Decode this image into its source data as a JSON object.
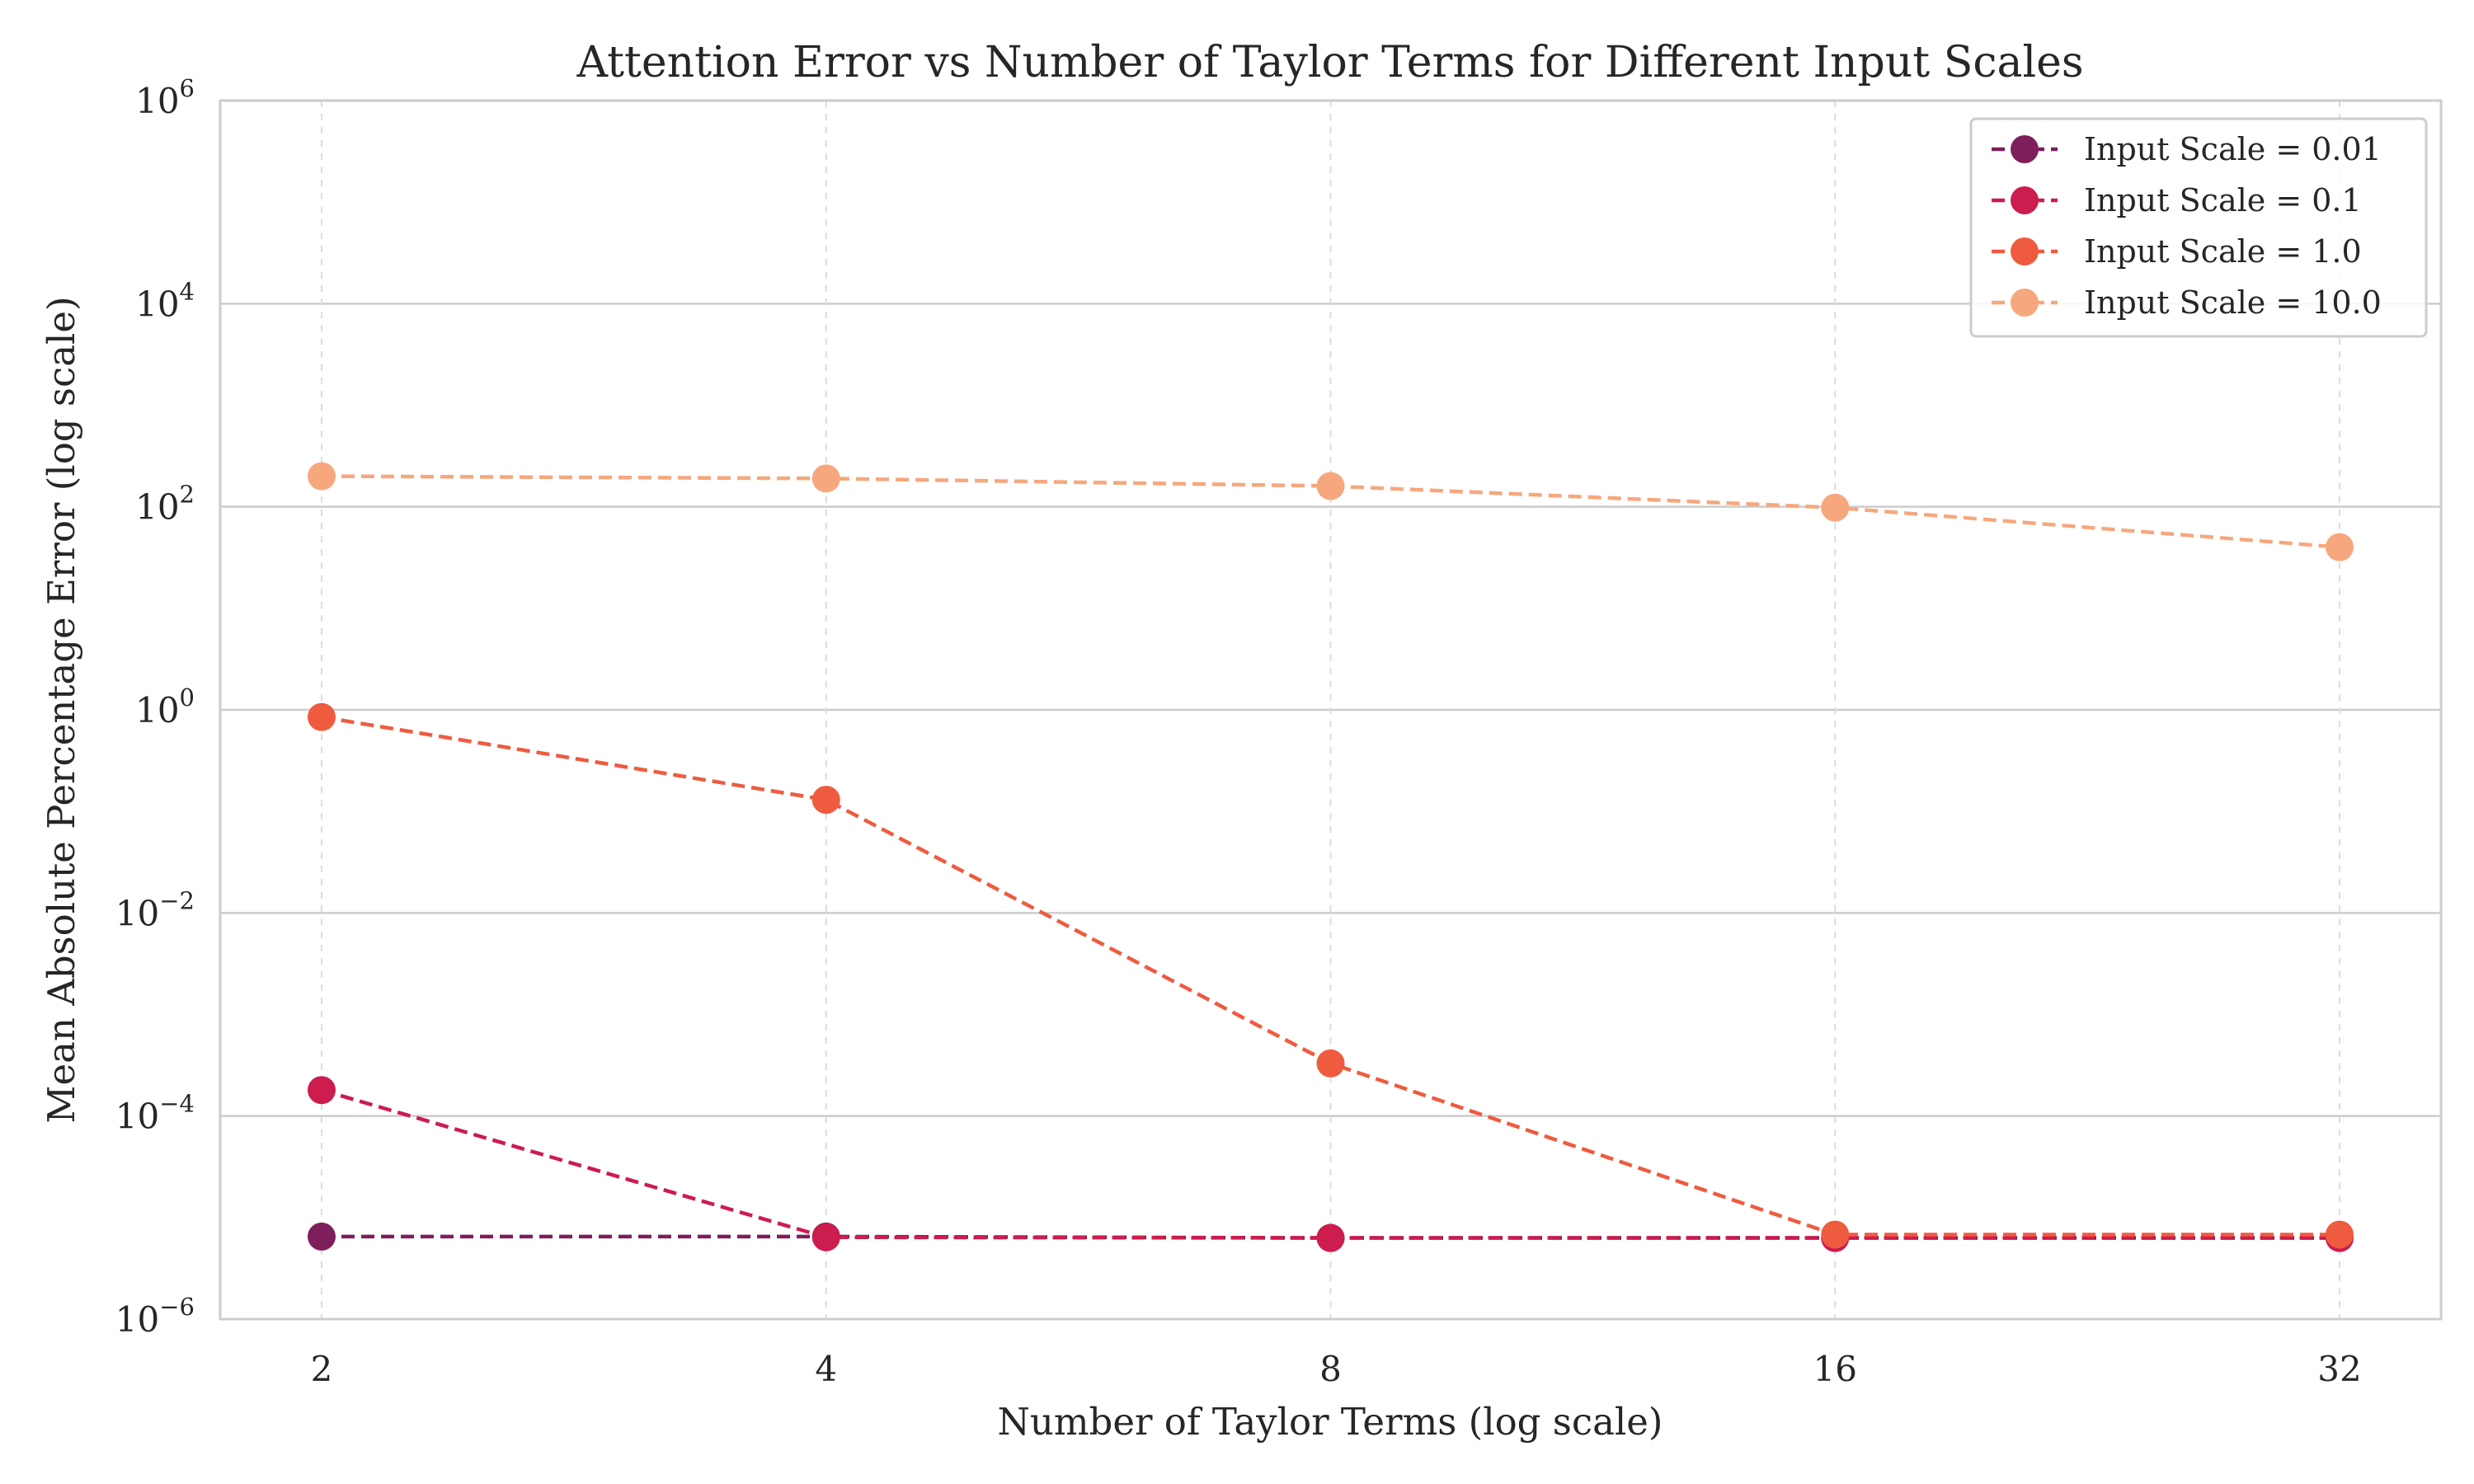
{
  "chart_data": {
    "type": "line",
    "title": "Attention Error vs Number of Taylor Terms for Different Input Scales",
    "xlabel": "Number of Taylor Terms (log scale)",
    "ylabel": "Mean Absolute Percentage Error (log scale)",
    "x_scale": "log2",
    "y_scale": "log10",
    "x": [
      2,
      4,
      8,
      16,
      32
    ],
    "x_tick_labels": [
      "2",
      "4",
      "8",
      "16",
      "32"
    ],
    "ylim": [
      1e-06,
      1000000.0
    ],
    "y_ticks": [
      {
        "value": 1e-06,
        "base": "10",
        "exp": "−6"
      },
      {
        "value": 0.0001,
        "base": "10",
        "exp": "−4"
      },
      {
        "value": 0.01,
        "base": "10",
        "exp": "−2"
      },
      {
        "value": 1.0,
        "base": "10",
        "exp": "0"
      },
      {
        "value": 100.0,
        "base": "10",
        "exp": "2"
      },
      {
        "value": 10000.0,
        "base": "10",
        "exp": "4"
      },
      {
        "value": 1000000.0,
        "base": "10",
        "exp": "6"
      }
    ],
    "grid": true,
    "legend_position": "top-right",
    "series": [
      {
        "name": "Input Scale = 0.01",
        "color": "#7e1e5a",
        "values": [
          6.5e-06,
          6.5e-06,
          6.3e-06,
          6.3e-06,
          6.3e-06
        ]
      },
      {
        "name": "Input Scale = 0.1",
        "color": "#cd1c4e",
        "values": [
          0.00018,
          6.4e-06,
          6.3e-06,
          6.3e-06,
          6.3e-06
        ]
      },
      {
        "name": "Input Scale = 1.0",
        "color": "#ee5b3f",
        "values": [
          0.85,
          0.13,
          0.00033,
          6.8e-06,
          6.8e-06
        ]
      },
      {
        "name": "Input Scale = 10.0",
        "color": "#f6a77d",
        "values": [
          200,
          190,
          160,
          98,
          40
        ]
      }
    ]
  }
}
